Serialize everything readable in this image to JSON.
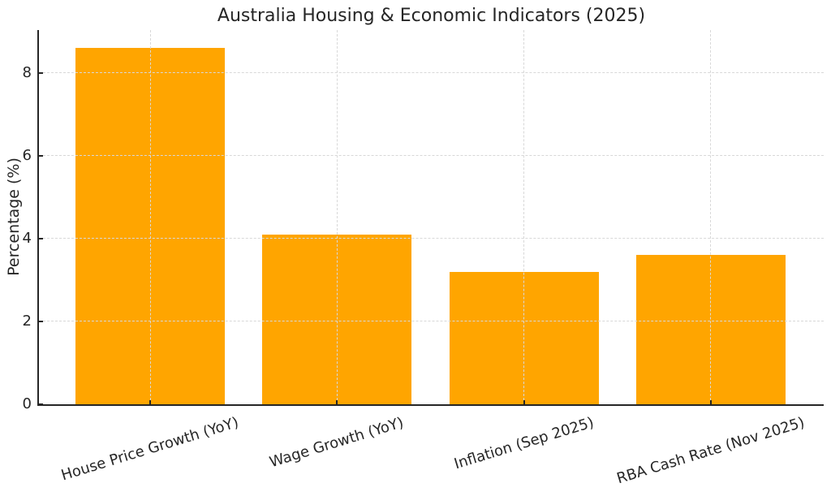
{
  "chart_data": {
    "type": "bar",
    "title": "Australia Housing & Economic Indicators (2025)",
    "xlabel": "",
    "ylabel": "Percentage (%)",
    "categories": [
      "House Price Growth (YoY)",
      "Wage Growth (YoY)",
      "Inflation (Sep 2025)",
      "RBA Cash Rate (Nov 2025)"
    ],
    "values": [
      8.6,
      4.1,
      3.2,
      3.6
    ],
    "yticks": [
      0,
      2,
      4,
      6,
      8
    ],
    "ylim": [
      0,
      9.03
    ],
    "bar_color": "#FFA500",
    "bar_width_fraction": 0.8,
    "grid": {
      "on": true,
      "style": "dashed",
      "color": "#d8d8d8",
      "over_bars": true
    },
    "axis_color": "#262626",
    "text_color": "#262626",
    "background": "#ffffff",
    "legend": null,
    "x_tick_rotation_deg": 17
  }
}
